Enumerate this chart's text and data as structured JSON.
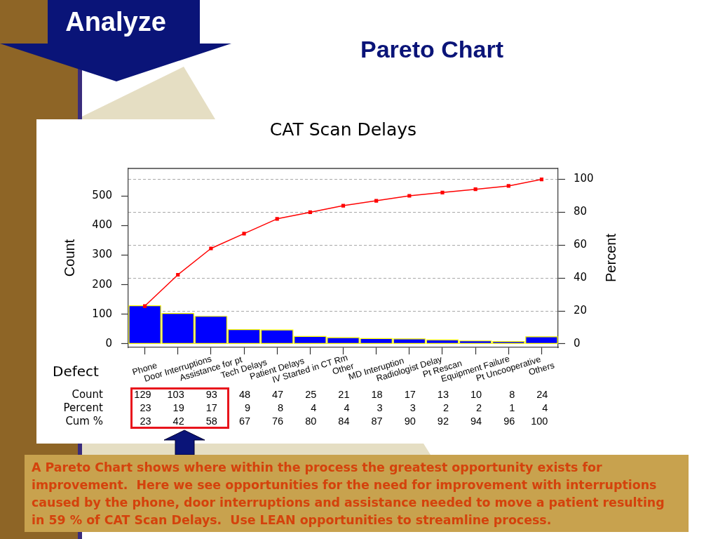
{
  "chart_data": {
    "type": "bar",
    "title": "CAT Scan Delays",
    "xlabel": "Defect",
    "ylabel": "Count",
    "y2label": "Percent",
    "categories": [
      "Phone",
      "Door Interruptions",
      "Assistance for pt",
      "Tech Delays",
      "Patient Delays",
      "IV Started in CT Rm",
      "Other",
      "MD Interuption",
      "Radiologist Delay",
      "Pt Rescan",
      "Equipment Failure",
      "Pt Uncooperative",
      "Others"
    ],
    "series": [
      {
        "color": "#0000ff",
        "values": [
          129,
          103,
          93,
          48,
          47,
          25,
          21,
          18,
          17,
          13,
          10,
          8,
          24
        ]
      },
      {
        "type": "line",
        "axis": "y2",
        "color": "#ff0000",
        "values": [
          23,
          42,
          58,
          67,
          76,
          80,
          84,
          87,
          90,
          92,
          94,
          96,
          100
        ]
      }
    ],
    "ylim": [
      -12,
      593
    ],
    "yticks": [
      0,
      100,
      200,
      300,
      400,
      500
    ],
    "y2lim": [
      -2.16,
      106.65
    ],
    "y2ticks": [
      0,
      20,
      40,
      60,
      80,
      100
    ],
    "grid": "y2",
    "marker": "square",
    "line_style": "solid",
    "data_labels": true,
    "annotations": [
      "Analyze",
      "Pareto Chart",
      "A Pareto Chart shows where within the process the greatest opportunity exists for improvement.  Here we see opportunities for the need for improvement with interruptions caused by the phone, door interruptions and assistance needed to move a patient resulting in 59 % of CAT Scan Delays.  Use LEAN opportunities to streamline process.",
      "Count",
      "Percent",
      "Cum %",
      "23",
      "19",
      "17",
      "9",
      "8",
      "4",
      "4",
      "3",
      "3",
      "2",
      "2",
      "1",
      "4"
    ]
  }
}
